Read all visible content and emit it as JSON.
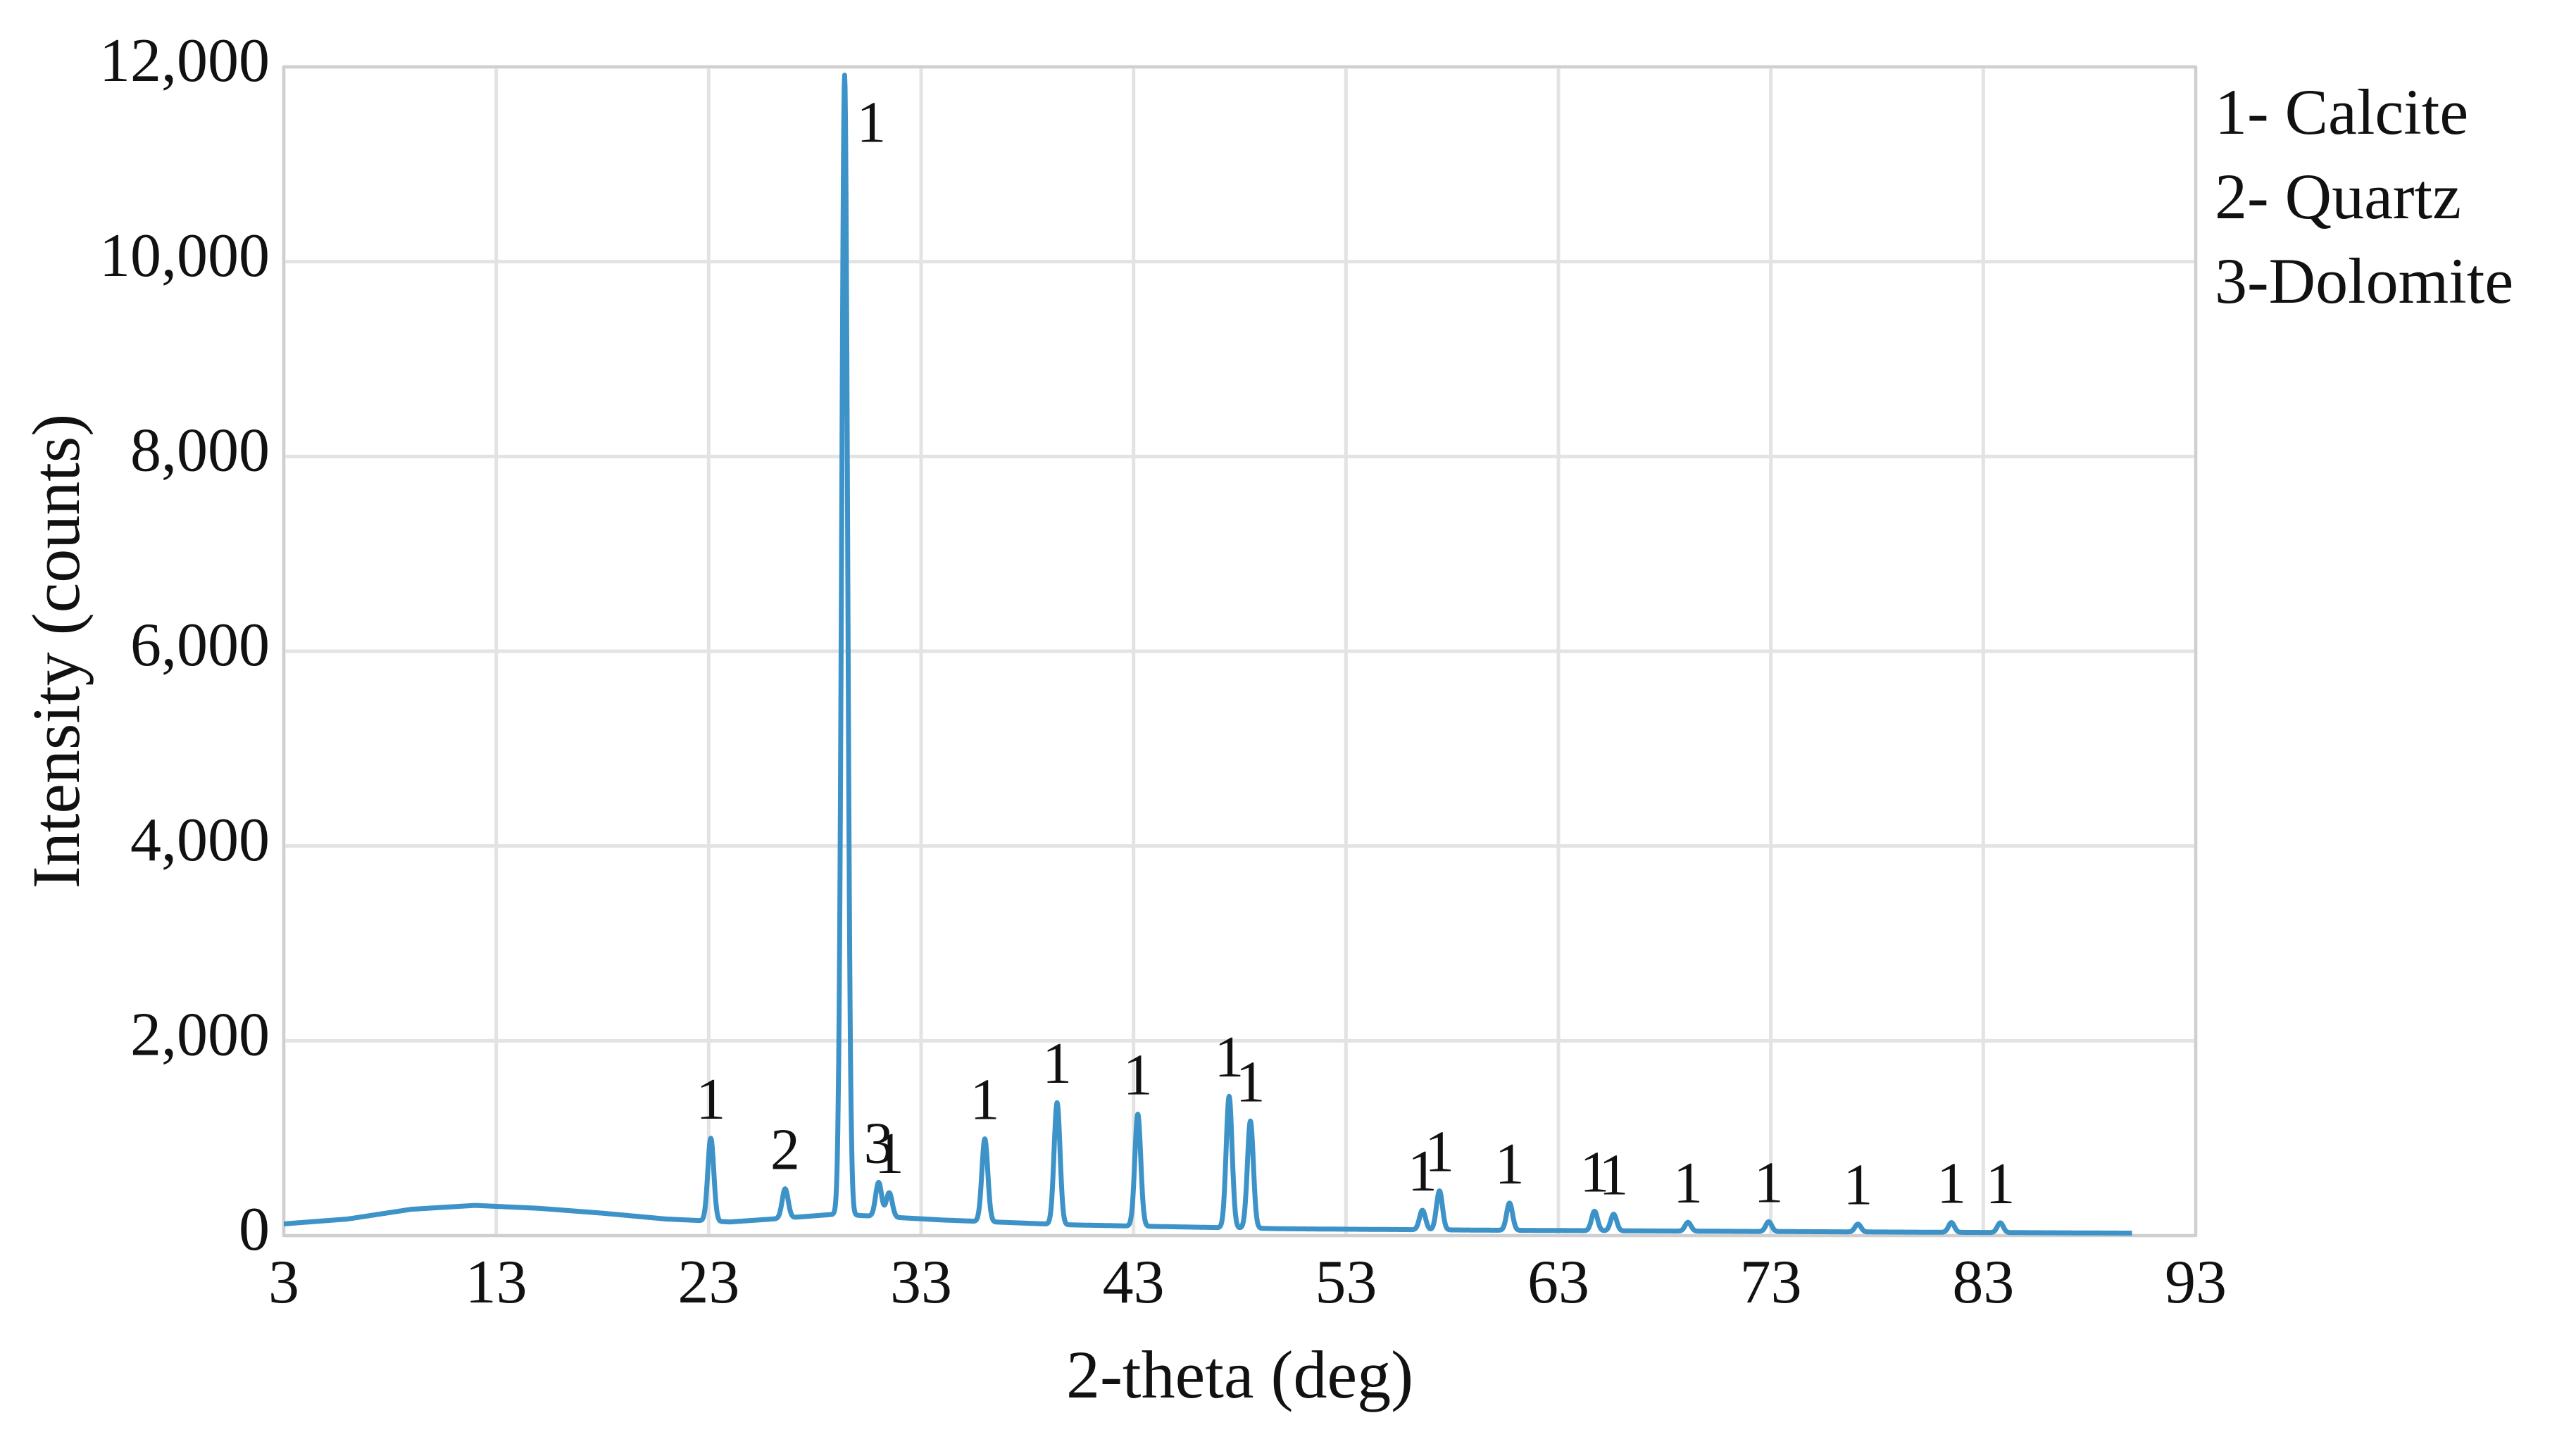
{
  "colors": {
    "trace": "#3d93c8"
  },
  "chart_data": {
    "type": "line",
    "xlabel": "2-theta (deg)",
    "ylabel": "Intensity (counts)",
    "xlim": [
      3,
      93
    ],
    "ylim": [
      0,
      12000
    ],
    "x_ticks": [
      3,
      13,
      23,
      33,
      43,
      53,
      63,
      73,
      83,
      93
    ],
    "x_tick_labels": [
      "3",
      "13",
      "23",
      "33",
      "43",
      "53",
      "63",
      "73",
      "83",
      "93"
    ],
    "y_ticks": [
      0,
      2000,
      4000,
      6000,
      8000,
      10000,
      12000
    ],
    "y_tick_labels": [
      "0",
      "2,000",
      "4,000",
      "6,000",
      "8,000",
      "10,000",
      "12,000"
    ],
    "grid": true,
    "legend_position": "top-right",
    "legend": [
      "1- Calcite",
      "2- Quartz",
      "3-Dolomite"
    ],
    "x_end": 90,
    "background": [
      [
        3,
        120
      ],
      [
        6,
        170
      ],
      [
        9,
        270
      ],
      [
        12,
        310
      ],
      [
        15,
        280
      ],
      [
        18,
        230
      ],
      [
        21,
        170
      ],
      [
        24,
        140
      ],
      [
        26,
        170
      ],
      [
        29,
        220
      ],
      [
        34,
        160
      ],
      [
        40,
        110
      ],
      [
        50,
        70
      ],
      [
        60,
        55
      ],
      [
        70,
        45
      ],
      [
        80,
        35
      ],
      [
        90,
        25
      ]
    ],
    "peaks": [
      {
        "x": 23.1,
        "y": 850,
        "label": "1",
        "phase": "Calcite"
      },
      {
        "x": 26.6,
        "y": 300,
        "label": "2",
        "phase": "Quartz"
      },
      {
        "x": 29.4,
        "y": 11700,
        "label": "1",
        "phase": "Calcite"
      },
      {
        "x": 31.0,
        "y": 350,
        "label": "3",
        "phase": "Dolomite"
      },
      {
        "x": 31.5,
        "y": 250,
        "label": "1",
        "phase": "Calcite"
      },
      {
        "x": 36.0,
        "y": 850,
        "label": "1",
        "phase": "Calcite"
      },
      {
        "x": 39.4,
        "y": 1250,
        "label": "1",
        "phase": "Calcite"
      },
      {
        "x": 43.2,
        "y": 1150,
        "label": "1",
        "phase": "Calcite"
      },
      {
        "x": 47.5,
        "y": 1350,
        "label": "1",
        "phase": "Calcite"
      },
      {
        "x": 48.5,
        "y": 1100,
        "label": "1",
        "phase": "Calcite"
      },
      {
        "x": 56.6,
        "y": 200,
        "label": "1",
        "phase": "Calcite"
      },
      {
        "x": 57.4,
        "y": 400,
        "label": "1",
        "phase": "Calcite"
      },
      {
        "x": 60.7,
        "y": 280,
        "label": "1",
        "phase": "Calcite"
      },
      {
        "x": 64.7,
        "y": 200,
        "label": "1",
        "phase": "Calcite"
      },
      {
        "x": 65.6,
        "y": 170,
        "label": "1",
        "phase": "Calcite"
      },
      {
        "x": 69.1,
        "y": 90,
        "label": "1",
        "phase": "Calcite"
      },
      {
        "x": 72.9,
        "y": 100,
        "label": "1",
        "phase": "Calcite"
      },
      {
        "x": 77.1,
        "y": 80,
        "label": "1",
        "phase": "Calcite"
      },
      {
        "x": 81.5,
        "y": 100,
        "label": "1",
        "phase": "Calcite"
      },
      {
        "x": 83.8,
        "y": 100,
        "label": "1",
        "phase": "Calcite"
      }
    ]
  }
}
